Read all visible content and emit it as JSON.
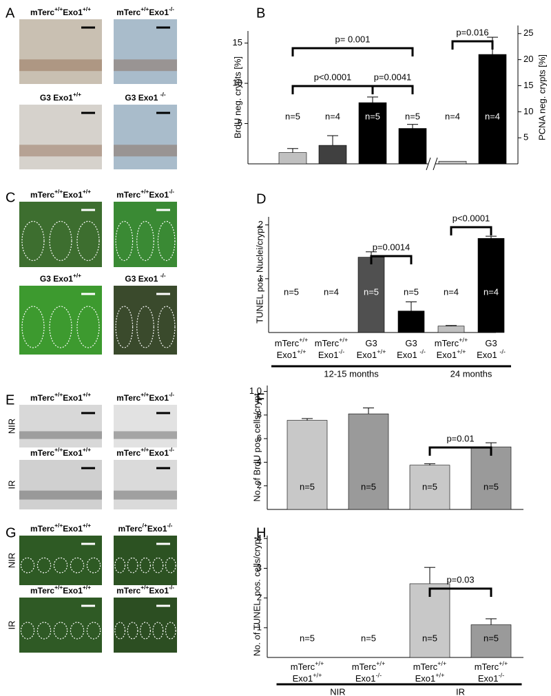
{
  "image_panels": [
    {
      "letter": "A",
      "images": [
        {
          "label": [
            "mTerc",
            "+/+",
            "Exo1",
            "+/+"
          ]
        },
        {
          "label": [
            "mTerc",
            "+/+",
            "Exo1",
            "-/-"
          ]
        },
        {
          "label": [
            "G3 Exo1",
            "+/+"
          ]
        },
        {
          "label": [
            "G3 Exo1 ",
            "-/-"
          ]
        }
      ]
    },
    {
      "letter": "C",
      "images": [
        {
          "label": [
            "mTerc",
            "+/+",
            "Exo1",
            "+/+"
          ]
        },
        {
          "label": [
            "mTerc",
            "+/+",
            "Exo1",
            "-/-"
          ]
        },
        {
          "label": [
            "G3 Exo1",
            "+/+"
          ]
        },
        {
          "label": [
            "G3 Exo1 ",
            "-/-"
          ]
        }
      ]
    },
    {
      "letter": "E",
      "row_labels": [
        "NIR",
        "IR"
      ],
      "images": [
        {
          "label": [
            "mTerc",
            "+/+",
            "Exo1",
            "+/+"
          ]
        },
        {
          "label": [
            "mTerc",
            "+/+",
            "Exo1",
            "-/-"
          ]
        },
        {
          "label": [
            "mTerc",
            "+/+",
            "Exo1",
            "+/+"
          ]
        },
        {
          "label": [
            "mTerc",
            "+/+",
            "Exo1",
            "-/-"
          ]
        }
      ]
    },
    {
      "letter": "G",
      "row_labels": [
        "NIR",
        "IR"
      ],
      "images": [
        {
          "label": [
            "mTerc",
            "+/+",
            "Exo1",
            "+/+"
          ]
        },
        {
          "label": [
            "mTerc",
            "/+",
            "Exo1",
            "-/-"
          ]
        },
        {
          "label": [
            "mTerc",
            "+/+",
            "Exo1",
            "+/+"
          ]
        },
        {
          "label": [
            "mTerc",
            "+/+",
            "Exo1",
            "-/-"
          ]
        }
      ]
    }
  ],
  "chart_data": [
    {
      "type": "bar",
      "letter": "B",
      "y_label": "BrdU neg. crypts [%]",
      "y2_label": "PCNA neg. crypts [%]",
      "ylim": [
        0,
        16.5
      ],
      "yticks": [
        5,
        10,
        15
      ],
      "y2lim": [
        0,
        25.5
      ],
      "y2ticks": [
        5,
        10,
        15,
        20,
        25
      ],
      "categories": [
        null,
        null,
        null,
        null,
        null,
        null
      ],
      "series": [
        {
          "values": [
            1.4,
            2.3,
            7.6,
            4.4,
            null,
            null
          ],
          "errors": [
            0.5,
            1.2,
            0.7,
            0.5,
            null,
            null
          ],
          "colors": [
            "#c0c0c0",
            "#404040",
            "#000000",
            "#000000",
            null,
            null
          ]
        },
        {
          "axis": "y2",
          "values": [
            null,
            null,
            null,
            null,
            0.5,
            21
          ],
          "errors": [
            null,
            null,
            null,
            null,
            null,
            3.3
          ],
          "colors": [
            null,
            null,
            null,
            null,
            "#c0c0c0",
            "#000000"
          ]
        }
      ],
      "n_labels": [
        "n=5",
        "n=4",
        "n=5",
        "n=5",
        "n=4",
        "n=4"
      ],
      "brackets": [
        {
          "from": 0,
          "to": 3,
          "label": "p= 0.001"
        },
        {
          "from": 0,
          "to": 2,
          "label": "p<0.0001"
        },
        {
          "from": 2,
          "to": 3,
          "label": "p=0.0041"
        },
        {
          "from": 4,
          "to": 5,
          "label": "p=0.016"
        }
      ]
    },
    {
      "type": "bar",
      "letter": "D",
      "y_label": "TUNEL pos. Nuclei/crypt",
      "ylim": [
        0,
        2.15
      ],
      "yticks": [
        1,
        2
      ],
      "categories": [
        [
          [
            "mTerc",
            "+/+"
          ],
          [
            "Exo1",
            "+/+"
          ]
        ],
        [
          [
            "mTerc",
            "+/+"
          ],
          [
            "Exo1",
            "-/-"
          ]
        ],
        [
          [
            "G3"
          ],
          [
            "Exo1",
            "+/+"
          ]
        ],
        [
          [
            "G3"
          ],
          [
            "Exo1 ",
            "-/-"
          ]
        ],
        [
          [
            "mTerc",
            "+/+"
          ],
          [
            "Exo1",
            "+/+"
          ]
        ],
        [
          [
            "G3"
          ],
          [
            "Exo1 ",
            "-/-"
          ]
        ]
      ],
      "series": [
        {
          "values": [
            0,
            0,
            1.4,
            0.4,
            0.12,
            1.75
          ],
          "errors": [
            null,
            null,
            0.1,
            0.17,
            0.01,
            0.04
          ],
          "colors": [
            "#505050",
            "#000000",
            "#505050",
            "#000000",
            "#c0c0c0",
            "#000000"
          ]
        }
      ],
      "n_labels": [
        "n=5",
        "n=4",
        "n=5",
        "n=5",
        "n=4",
        "n=4"
      ],
      "brackets": [
        {
          "from": 2,
          "to": 3,
          "label": "p=0.0014"
        },
        {
          "from": 4,
          "to": 5,
          "label": "p<0.0001"
        }
      ],
      "groups": [
        {
          "from": 0,
          "to": 3,
          "label": "12-15 months"
        },
        {
          "from": 4,
          "to": 5,
          "label": "24 months"
        }
      ]
    },
    {
      "type": "bar",
      "letter": "F",
      "y_label": "No. of BrdU pos. cells/crypt",
      "ylim": [
        0,
        10.5
      ],
      "yticks": [
        2,
        4,
        6,
        8,
        {
          "value": 10,
          "label": "1 0"
        }
      ],
      "categories": [
        null,
        null,
        null,
        null
      ],
      "series": [
        {
          "values": [
            7.55,
            8.1,
            3.75,
            5.3
          ],
          "errors": [
            0.15,
            0.5,
            0.12,
            0.35
          ],
          "colors": [
            "#c8c8c8",
            "#9a9a9a",
            "#c8c8c8",
            "#9a9a9a"
          ]
        }
      ],
      "n_labels": [
        "n=5",
        "n=5",
        "n=5",
        "n=5"
      ],
      "brackets": [
        {
          "from": 2,
          "to": 3,
          "label": "p=0.01"
        }
      ]
    },
    {
      "type": "bar",
      "letter": "H",
      "y_label": "No. of TUNEL  pos. cells/crypt",
      "ylim": [
        0,
        4.1
      ],
      "yticks": [
        1,
        2,
        3,
        4
      ],
      "categories": [
        [
          [
            "mTerc",
            "+/+"
          ],
          [
            "Exo1",
            "+/+"
          ]
        ],
        [
          [
            "mTerc",
            "+/+"
          ],
          [
            "Exo1",
            "-/-"
          ]
        ],
        [
          [
            "mTerc",
            "+/+"
          ],
          [
            "Exo1",
            "+/+"
          ]
        ],
        [
          [
            "mTerc",
            "+/+"
          ],
          [
            "Exo1",
            "-/-"
          ]
        ]
      ],
      "series": [
        {
          "values": [
            0,
            0,
            2.48,
            1.1
          ],
          "errors": [
            null,
            null,
            0.55,
            0.2
          ],
          "colors": [
            "#c8c8c8",
            "#9a9a9a",
            "#c8c8c8",
            "#9a9a9a"
          ]
        }
      ],
      "n_labels": [
        "n=5",
        "n=5",
        "n=5",
        "n=5"
      ],
      "brackets": [
        {
          "from": 2,
          "to": 3,
          "label": "p=0.03"
        }
      ],
      "groups": [
        {
          "from": 0,
          "to": 1,
          "label": "NIR"
        },
        {
          "from": 2,
          "to": 3,
          "label": "IR"
        }
      ]
    }
  ]
}
